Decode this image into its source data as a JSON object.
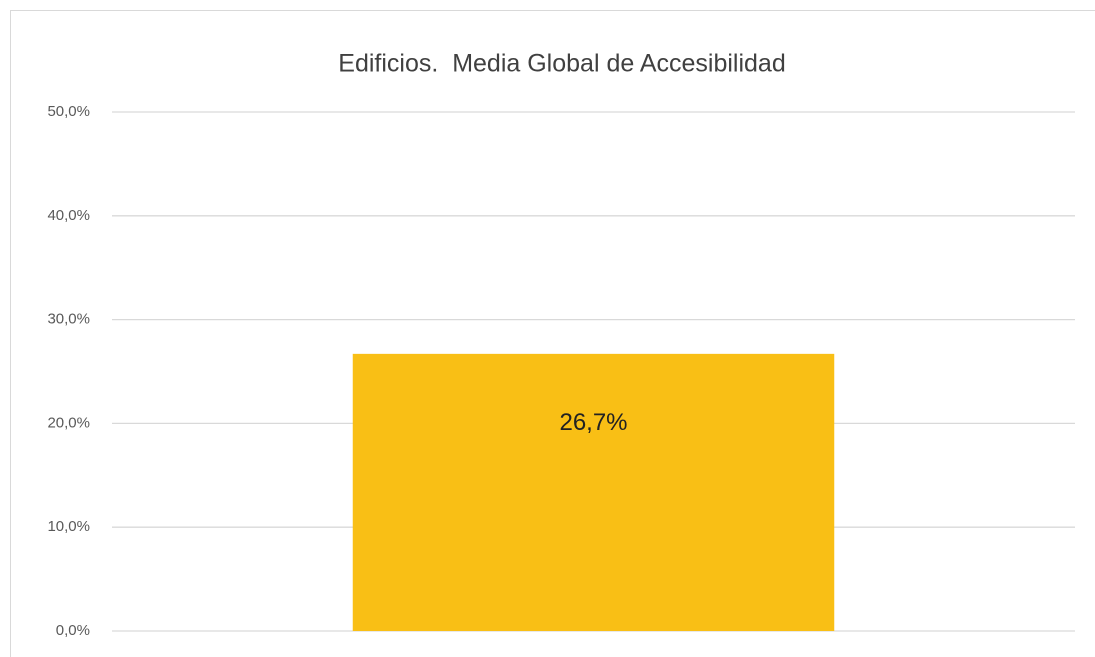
{
  "chart_data": {
    "type": "bar",
    "title": "Edificios.  Media Global de Accesibilidad",
    "categories": [
      null
    ],
    "values": [
      26.7
    ],
    "value_labels": [
      "26,7%"
    ],
    "color": "#f9bf15",
    "ylim": [
      0,
      50
    ],
    "yticks": [
      {
        "value": 0,
        "label": "0,0%"
      },
      {
        "value": 10,
        "label": "10,0%"
      },
      {
        "value": 20,
        "label": "20,0%"
      },
      {
        "value": 30,
        "label": "30,0%"
      },
      {
        "value": 40,
        "label": "40,0%"
      },
      {
        "value": 50,
        "label": "50,0%"
      }
    ],
    "grid": true
  }
}
